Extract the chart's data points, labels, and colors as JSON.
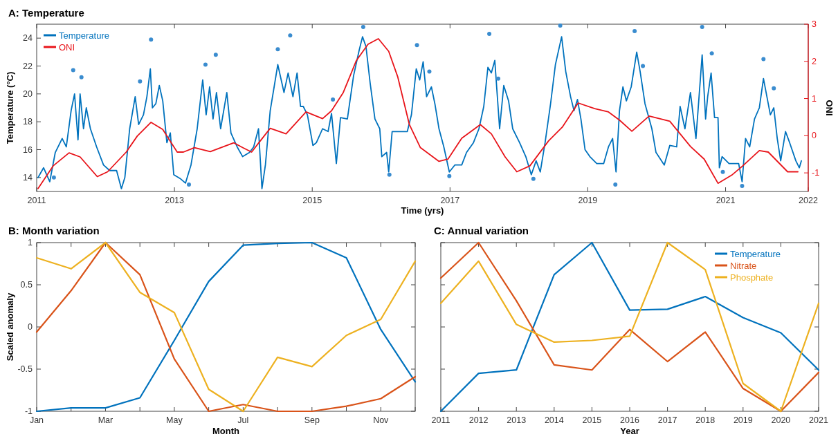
{
  "chart_data": [
    {
      "type": "line",
      "title": "A: Temperature",
      "xlabel": "Time (yrs)",
      "ylabel": "Temperature (°C)",
      "y2label": "ONI",
      "xlim": [
        2011,
        2022.2
      ],
      "xticks": [
        2011,
        2013,
        2015,
        2017,
        2019,
        2021,
        {
          "value": 2022.2,
          "label": "2022"
        }
      ],
      "ylim": [
        13,
        25
      ],
      "yticks": [
        14,
        16,
        18,
        20,
        22,
        24
      ],
      "y2lim": [
        -1.5,
        3
      ],
      "y2ticks": [
        -1,
        0,
        1,
        2,
        3
      ],
      "legend": "top left",
      "series": [
        {
          "name": "Temperature",
          "color": "#0072bd",
          "x": [
            2011.02,
            2011.1,
            2011.19,
            2011.27,
            2011.37,
            2011.43,
            2011.5,
            2011.55,
            2011.6,
            2011.63,
            2011.68,
            2011.72,
            2011.78,
            2011.87,
            2011.97,
            2012.06,
            2012.16,
            2012.23,
            2012.28,
            2012.35,
            2012.43,
            2012.48,
            2012.55,
            2012.6,
            2012.65,
            2012.68,
            2012.73,
            2012.78,
            2012.83,
            2012.89,
            2012.94,
            2012.99,
            2013.09,
            2013.16,
            2013.24,
            2013.33,
            2013.41,
            2013.46,
            2013.51,
            2013.56,
            2013.61,
            2013.67,
            2013.76,
            2013.82,
            2013.91,
            2013.99,
            2014.09,
            2014.15,
            2014.22,
            2014.27,
            2014.32,
            2014.39,
            2014.5,
            2014.59,
            2014.65,
            2014.72,
            2014.78,
            2014.83,
            2014.87,
            2014.93,
            2015.01,
            2015.06,
            2015.15,
            2015.23,
            2015.28,
            2015.35,
            2015.41,
            2015.51,
            2015.6,
            2015.68,
            2015.73,
            2015.78,
            2015.84,
            2015.91,
            2015.98,
            2016.01,
            2016.08,
            2016.11,
            2016.16,
            2016.38,
            2016.44,
            2016.51,
            2016.56,
            2016.61,
            2016.66,
            2016.73,
            2016.78,
            2016.84,
            2016.91,
            2016.99,
            2017.07,
            2017.17,
            2017.24,
            2017.34,
            2017.42,
            2017.49,
            2017.55,
            2017.6,
            2017.65,
            2017.72,
            2017.78,
            2017.85,
            2017.91,
            2018.01,
            2018.1,
            2018.18,
            2018.25,
            2018.31,
            2018.38,
            2018.46,
            2018.53,
            2018.62,
            2018.68,
            2018.75,
            2018.8,
            2018.85,
            2018.9,
            2018.96,
            2019.03,
            2019.13,
            2019.23,
            2019.3,
            2019.36,
            2019.41,
            2019.46,
            2019.51,
            2019.56,
            2019.63,
            2019.71,
            2019.76,
            2019.83,
            2019.93,
            2019.99,
            2020.11,
            2020.19,
            2020.29,
            2020.34,
            2020.41,
            2020.49,
            2020.57,
            2020.66,
            2020.71,
            2020.74,
            2020.79,
            2020.84,
            2020.89,
            2020.91,
            2020.95,
            2021.05,
            2021.19,
            2021.24,
            2021.29,
            2021.35,
            2021.42,
            2021.49,
            2021.55,
            2021.6,
            2021.65,
            2021.7,
            2021.75,
            2021.8,
            2021.87,
            2021.93,
            2022.02,
            2022.07,
            2022.1
          ],
          "values": [
            14.0,
            14.7,
            13.7,
            15.8,
            16.8,
            16.2,
            18.8,
            20.0,
            16.7,
            20.0,
            17.5,
            19.0,
            17.5,
            16.2,
            14.9,
            14.5,
            14.5,
            13.2,
            14.0,
            17.5,
            19.8,
            17.8,
            18.5,
            19.8,
            21.8,
            19.0,
            19.3,
            20.6,
            19.5,
            16.5,
            17.2,
            14.2,
            13.9,
            13.6,
            14.9,
            17.5,
            21.0,
            18.5,
            20.5,
            18.2,
            20.1,
            17.5,
            20.1,
            17.2,
            16.2,
            15.5,
            15.8,
            16.2,
            17.5,
            13.2,
            14.9,
            18.8,
            22.1,
            20.1,
            21.5,
            19.8,
            21.5,
            19.1,
            19.1,
            18.5,
            16.3,
            16.5,
            17.5,
            17.3,
            18.6,
            15.0,
            18.3,
            18.2,
            21.3,
            23.1,
            24.1,
            23.4,
            20.8,
            18.2,
            17.5,
            15.5,
            15.8,
            14.4,
            17.3,
            17.3,
            18.5,
            21.8,
            21.0,
            22.3,
            19.8,
            20.5,
            19.3,
            17.5,
            16.2,
            14.4,
            14.9,
            14.9,
            15.8,
            16.5,
            17.5,
            19.1,
            21.9,
            21.5,
            22.4,
            17.5,
            20.6,
            19.5,
            17.5,
            16.5,
            15.5,
            14.2,
            15.2,
            14.4,
            16.5,
            19.3,
            22.1,
            24.1,
            21.6,
            19.8,
            18.8,
            19.6,
            18.2,
            16.0,
            15.5,
            15.0,
            15.0,
            16.2,
            16.8,
            14.4,
            18.8,
            20.5,
            19.5,
            20.5,
            23.0,
            21.6,
            19.3,
            17.5,
            15.8,
            14.9,
            16.3,
            16.2,
            19.1,
            17.5,
            20.1,
            16.8,
            22.8,
            18.2,
            19.8,
            21.5,
            18.3,
            18.3,
            14.7,
            15.5,
            15.0,
            15.0,
            13.7,
            16.8,
            16.2,
            18.2,
            19.0,
            21.1,
            19.8,
            18.5,
            19.0,
            16.8,
            15.2,
            17.3,
            16.5,
            15.2,
            14.7,
            15.2
          ]
        },
        {
          "type": "scatter",
          "marker": "circle",
          "color": "#3a8ccf",
          "x": [
            2011.25,
            2011.53,
            2012.66,
            2013.21,
            2013.6,
            2014.5,
            2014.68,
            2015.74,
            2016.12,
            2016.52,
            2016.99,
            2017.57,
            2018.21,
            2018.6,
            2019.4,
            2019.68,
            2020.66,
            2020.96,
            2021.24,
            2021.55,
            2011.65,
            2012.5,
            2013.45,
            2015.3,
            2016.7,
            2017.7,
            2019.8,
            2020.8,
            2021.7
          ],
          "values": [
            14.0,
            21.7,
            23.9,
            13.5,
            22.8,
            23.2,
            24.2,
            24.8,
            14.2,
            23.5,
            14.1,
            24.3,
            13.9,
            24.9,
            13.5,
            24.5,
            24.8,
            14.4,
            13.4,
            22.5,
            21.2,
            20.9,
            22.1,
            19.6,
            21.6,
            21.1,
            22.0,
            22.9,
            20.4
          ]
        },
        {
          "name": "ONI",
          "axis": "y2",
          "color": "#e8141a",
          "x": [
            2011.02,
            2011.24,
            2011.47,
            2011.63,
            2011.88,
            2012.03,
            2012.3,
            2012.46,
            2012.66,
            2012.83,
            2013.04,
            2013.13,
            2013.29,
            2013.52,
            2013.86,
            2013.99,
            2014.12,
            2014.22,
            2014.39,
            2014.62,
            2014.91,
            2015.15,
            2015.28,
            2015.45,
            2015.64,
            2015.81,
            2015.96,
            2016.11,
            2016.24,
            2016.41,
            2016.57,
            2016.84,
            2016.97,
            2017.17,
            2017.44,
            2017.6,
            2017.8,
            2017.97,
            2018.16,
            2018.43,
            2018.63,
            2018.86,
            2019.1,
            2019.3,
            2019.46,
            2019.64,
            2019.89,
            2020.19,
            2020.49,
            2020.69,
            2020.89,
            2021.09,
            2021.25,
            2021.49,
            2021.62,
            2021.9,
            2022.05
          ],
          "values": [
            -1.42,
            -0.81,
            -0.46,
            -0.57,
            -1.1,
            -0.97,
            -0.44,
            -0.01,
            0.36,
            0.17,
            -0.44,
            -0.44,
            -0.32,
            -0.43,
            -0.19,
            -0.32,
            -0.44,
            -0.2,
            0.2,
            0.05,
            0.64,
            0.46,
            0.67,
            1.16,
            2.02,
            2.46,
            2.61,
            2.27,
            1.59,
            0.3,
            -0.32,
            -0.69,
            -0.63,
            -0.07,
            0.3,
            0.05,
            -0.57,
            -0.97,
            -0.81,
            -0.14,
            0.23,
            0.88,
            0.73,
            0.64,
            0.42,
            0.12,
            0.53,
            0.39,
            -0.29,
            -0.63,
            -1.28,
            -1.06,
            -0.81,
            -0.4,
            -0.44,
            -0.97,
            -0.97
          ]
        }
      ]
    },
    {
      "type": "line",
      "title": "B: Month variation",
      "xlabel": "Month",
      "ylabel": "Scaled anomaly",
      "categories": [
        "Jan",
        null,
        "Mar",
        null,
        "May",
        null,
        "Jul",
        null,
        "Sep",
        null,
        "Nov",
        null
      ],
      "ylim": [
        -1,
        1
      ],
      "yticks": [
        -1,
        -0.5,
        0,
        0.5,
        1
      ],
      "series": [
        {
          "color": "#0072bd",
          "values": [
            -1,
            -0.96,
            -0.96,
            -0.84,
            -0.16,
            0.54,
            0.97,
            0.99,
            1,
            0.82,
            -0.03,
            -0.65
          ]
        },
        {
          "color": "#d95319",
          "values": [
            -0.06,
            0.43,
            1,
            0.62,
            -0.38,
            -1,
            -0.92,
            -1,
            -1,
            -0.94,
            -0.85,
            -0.59
          ]
        },
        {
          "color": "#edb120",
          "values": [
            0.82,
            0.69,
            1,
            0.41,
            0.17,
            -0.74,
            -1,
            -0.36,
            -0.47,
            -0.1,
            0.09,
            0.78
          ]
        }
      ]
    },
    {
      "type": "line",
      "title": "C: Annual variation",
      "xlabel": "Year",
      "x": [
        2011,
        2012,
        2013,
        2014,
        2015,
        2016,
        2017,
        2018,
        2019,
        2020,
        2021
      ],
      "xlim": [
        2011,
        2021
      ],
      "xticks": [
        2011,
        2012,
        2013,
        2014,
        2015,
        2016,
        2017,
        2018,
        2019,
        2020,
        2021
      ],
      "ylim": [
        -1,
        1
      ],
      "yticks": [
        -1,
        -0.5,
        0,
        0.5,
        1
      ],
      "tick_labels": "x",
      "legend": "top right",
      "series": [
        {
          "name": "Temperature",
          "color": "#0072bd",
          "values": [
            -1,
            -0.55,
            -0.51,
            0.62,
            1,
            0.2,
            0.21,
            0.36,
            0.11,
            -0.07,
            -0.51
          ]
        },
        {
          "name": "Nitrate",
          "color": "#d95319",
          "values": [
            0.58,
            1,
            0.31,
            -0.45,
            -0.51,
            -0.03,
            -0.41,
            -0.06,
            -0.73,
            -1,
            -0.54
          ]
        },
        {
          "name": "Phosphate",
          "color": "#edb120",
          "values": [
            0.28,
            0.78,
            0.03,
            -0.18,
            -0.16,
            -0.11,
            1,
            0.68,
            -0.67,
            -1,
            0.28
          ]
        }
      ]
    }
  ]
}
